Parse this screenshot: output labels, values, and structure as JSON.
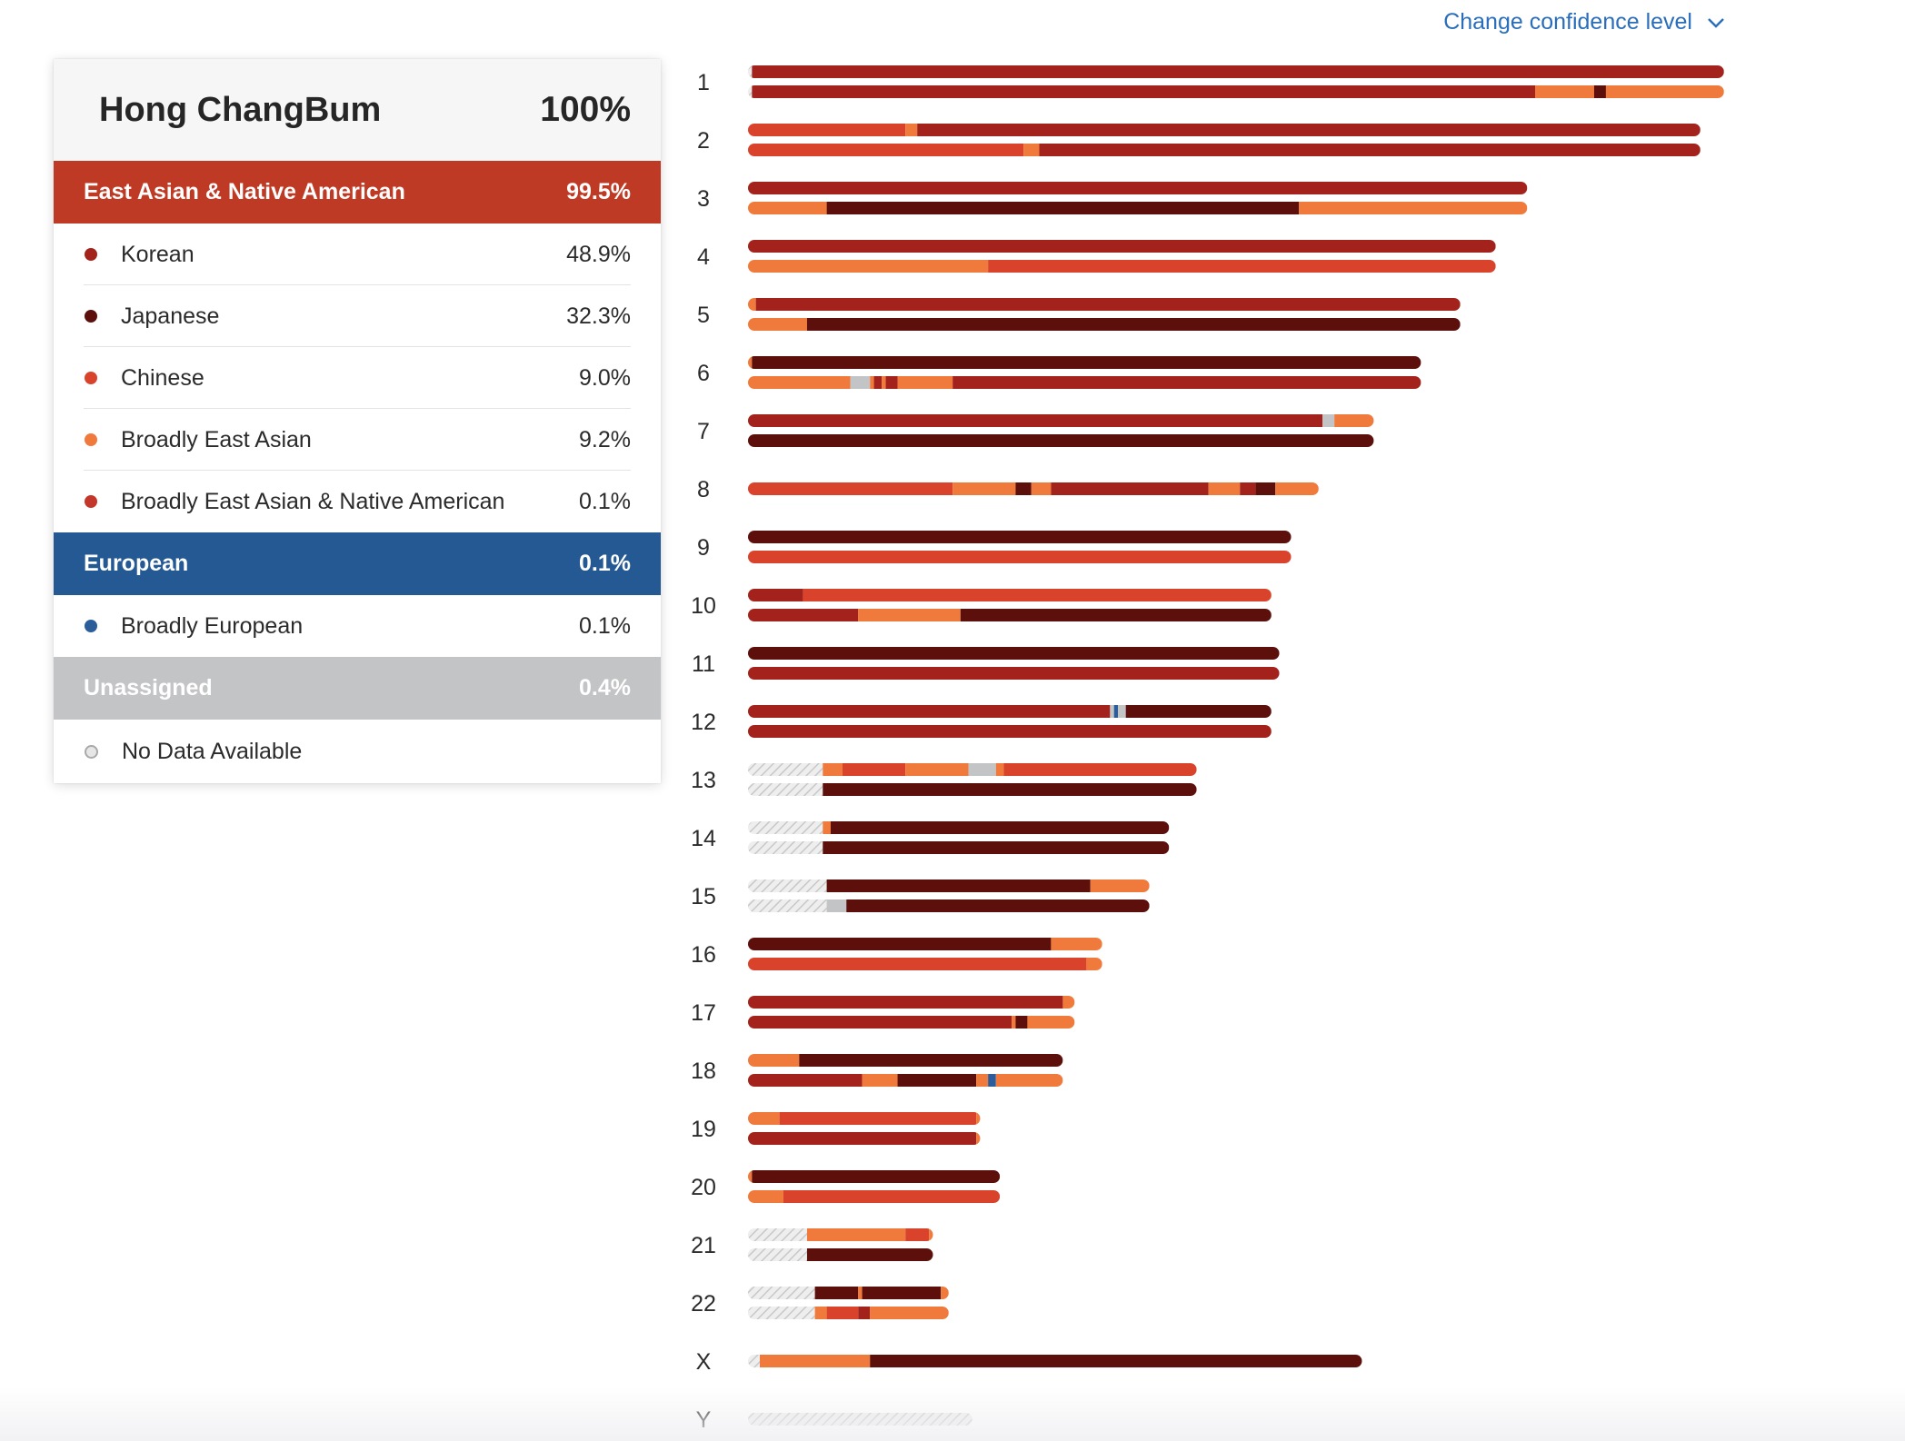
{
  "header": {
    "confidence_label": "Change confidence level"
  },
  "panel": {
    "name": "Hong ChangBum",
    "total": "100%",
    "categories": [
      {
        "label": "East Asian & Native American",
        "percent": "99.5%",
        "color": "#bf3a24",
        "items": [
          {
            "label": "Korean",
            "percent": "48.9%",
            "color": "#a3231c"
          },
          {
            "label": "Japanese",
            "percent": "32.3%",
            "color": "#5c0f0b"
          },
          {
            "label": "Chinese",
            "percent": "9.0%",
            "color": "#d9432b"
          },
          {
            "label": "Broadly East Asian",
            "percent": "9.2%",
            "color": "#ef7a3b"
          },
          {
            "label": "Broadly East Asian & Native American",
            "percent": "0.1%",
            "color": "#c4362a"
          }
        ]
      },
      {
        "label": "European",
        "percent": "0.1%",
        "color": "#245994",
        "items": [
          {
            "label": "Broadly European",
            "percent": "0.1%",
            "color": "#2a5d99"
          }
        ]
      },
      {
        "label": "Unassigned",
        "percent": "0.4%",
        "color": "#c3c4c6",
        "items": [
          {
            "label": "No Data Available",
            "percent": "",
            "color": "#e6e6e6"
          }
        ]
      }
    ]
  },
  "colors": {
    "K": "#a3231c",
    "J": "#5c0f0b",
    "C": "#d9432b",
    "B": "#ef7a3b",
    "E": "#2a5d99",
    "U": "#c3c4c6",
    "N": "hatch"
  },
  "chromosomes": [
    {
      "label": "1",
      "length": 248,
      "top": [
        [
          "N",
          0,
          1
        ],
        [
          "K",
          1,
          248
        ]
      ],
      "bottom": [
        [
          "N",
          0,
          1
        ],
        [
          "K",
          1,
          200
        ],
        [
          "B",
          200,
          215
        ],
        [
          "J",
          215,
          218
        ],
        [
          "B",
          218,
          248
        ]
      ]
    },
    {
      "label": "2",
      "length": 242,
      "top": [
        [
          "C",
          0,
          40
        ],
        [
          "B",
          40,
          43
        ],
        [
          "K",
          43,
          242
        ]
      ],
      "bottom": [
        [
          "C",
          0,
          70
        ],
        [
          "B",
          70,
          74
        ],
        [
          "K",
          74,
          242
        ]
      ]
    },
    {
      "label": "3",
      "length": 198,
      "top": [
        [
          "K",
          0,
          198
        ]
      ],
      "bottom": [
        [
          "B",
          0,
          20
        ],
        [
          "J",
          20,
          140
        ],
        [
          "B",
          140,
          198
        ]
      ]
    },
    {
      "label": "4",
      "length": 190,
      "top": [
        [
          "K",
          0,
          190
        ]
      ],
      "bottom": [
        [
          "B",
          0,
          61
        ],
        [
          "C",
          61,
          190
        ]
      ]
    },
    {
      "label": "5",
      "length": 181,
      "top": [
        [
          "B",
          0,
          2
        ],
        [
          "K",
          2,
          181
        ]
      ],
      "bottom": [
        [
          "B",
          0,
          15
        ],
        [
          "J",
          15,
          181
        ]
      ]
    },
    {
      "label": "6",
      "length": 171,
      "top": [
        [
          "B",
          0,
          1
        ],
        [
          "J",
          1,
          171
        ]
      ],
      "bottom": [
        [
          "B",
          0,
          26
        ],
        [
          "U",
          26,
          31
        ],
        [
          "B",
          31,
          32
        ],
        [
          "K",
          32,
          34
        ],
        [
          "B",
          34,
          35
        ],
        [
          "K",
          35,
          38
        ],
        [
          "B",
          38,
          52
        ],
        [
          "K",
          52,
          171
        ]
      ]
    },
    {
      "label": "7",
      "length": 159,
      "top": [
        [
          "K",
          0,
          146
        ],
        [
          "U",
          146,
          149
        ],
        [
          "B",
          149,
          159
        ]
      ],
      "bottom": [
        [
          "J",
          0,
          159
        ]
      ]
    },
    {
      "label": "8",
      "length": 145,
      "top": [
        [
          "C",
          0,
          52
        ],
        [
          "B",
          52,
          68
        ],
        [
          "J",
          68,
          72
        ],
        [
          "B",
          72,
          77
        ],
        [
          "K",
          77,
          117
        ],
        [
          "B",
          117,
          125
        ],
        [
          "K",
          125,
          129
        ],
        [
          "J",
          129,
          134
        ],
        [
          "B",
          134,
          145
        ]
      ]
    },
    {
      "label": "9",
      "length": 138,
      "top": [
        [
          "J",
          0,
          138
        ]
      ],
      "bottom": [
        [
          "C",
          0,
          138
        ]
      ]
    },
    {
      "label": "10",
      "length": 133,
      "top": [
        [
          "K",
          0,
          14
        ],
        [
          "C",
          14,
          133
        ]
      ],
      "bottom": [
        [
          "K",
          0,
          28
        ],
        [
          "B",
          28,
          54
        ],
        [
          "J",
          54,
          133
        ]
      ]
    },
    {
      "label": "11",
      "length": 135,
      "top": [
        [
          "J",
          0,
          135
        ]
      ],
      "bottom": [
        [
          "K",
          0,
          135
        ]
      ]
    },
    {
      "label": "12",
      "length": 133,
      "top": [
        [
          "K",
          0,
          92
        ],
        [
          "U",
          92,
          93
        ],
        [
          "E",
          93,
          94
        ],
        [
          "U",
          94,
          96
        ],
        [
          "J",
          96,
          133
        ]
      ],
      "bottom": [
        [
          "K",
          0,
          133
        ]
      ]
    },
    {
      "label": "13",
      "length": 114,
      "top": [
        [
          "N",
          0,
          19
        ],
        [
          "B",
          19,
          24
        ],
        [
          "C",
          24,
          40
        ],
        [
          "B",
          40,
          56
        ],
        [
          "U",
          56,
          63
        ],
        [
          "B",
          63,
          65
        ],
        [
          "C",
          65,
          114
        ]
      ],
      "bottom": [
        [
          "N",
          0,
          19
        ],
        [
          "J",
          19,
          114
        ]
      ]
    },
    {
      "label": "14",
      "length": 107,
      "top": [
        [
          "N",
          0,
          19
        ],
        [
          "B",
          19,
          21
        ],
        [
          "J",
          21,
          107
        ]
      ],
      "bottom": [
        [
          "N",
          0,
          19
        ],
        [
          "J",
          19,
          107
        ]
      ]
    },
    {
      "label": "15",
      "length": 102,
      "top": [
        [
          "N",
          0,
          20
        ],
        [
          "J",
          20,
          87
        ],
        [
          "B",
          87,
          102
        ]
      ],
      "bottom": [
        [
          "N",
          0,
          20
        ],
        [
          "U",
          20,
          25
        ],
        [
          "J",
          25,
          102
        ]
      ]
    },
    {
      "label": "16",
      "length": 90,
      "top": [
        [
          "J",
          0,
          77
        ],
        [
          "B",
          77,
          90
        ]
      ],
      "bottom": [
        [
          "C",
          0,
          86
        ],
        [
          "B",
          86,
          90
        ]
      ]
    },
    {
      "label": "17",
      "length": 83,
      "top": [
        [
          "K",
          0,
          80
        ],
        [
          "B",
          80,
          83
        ]
      ],
      "bottom": [
        [
          "K",
          0,
          67
        ],
        [
          "B",
          67,
          68
        ],
        [
          "J",
          68,
          71
        ],
        [
          "B",
          71,
          83
        ]
      ]
    },
    {
      "label": "18",
      "length": 80,
      "top": [
        [
          "B",
          0,
          13
        ],
        [
          "J",
          13,
          80
        ]
      ],
      "bottom": [
        [
          "K",
          0,
          29
        ],
        [
          "B",
          29,
          38
        ],
        [
          "J",
          38,
          58
        ],
        [
          "B",
          58,
          61
        ],
        [
          "E",
          61,
          63
        ],
        [
          "B",
          63,
          80
        ]
      ]
    },
    {
      "label": "19",
      "length": 59,
      "top": [
        [
          "B",
          0,
          8
        ],
        [
          "C",
          8,
          58
        ],
        [
          "B",
          58,
          59
        ]
      ],
      "bottom": [
        [
          "K",
          0,
          58
        ],
        [
          "B",
          58,
          59
        ]
      ]
    },
    {
      "label": "20",
      "length": 64,
      "top": [
        [
          "B",
          0,
          1
        ],
        [
          "J",
          1,
          64
        ]
      ],
      "bottom": [
        [
          "B",
          0,
          9
        ],
        [
          "C",
          9,
          64
        ]
      ]
    },
    {
      "label": "21",
      "length": 47,
      "top": [
        [
          "N",
          0,
          15
        ],
        [
          "B",
          15,
          40
        ],
        [
          "C",
          40,
          46
        ],
        [
          "B",
          46,
          47
        ]
      ],
      "bottom": [
        [
          "N",
          0,
          15
        ],
        [
          "J",
          15,
          47
        ]
      ]
    },
    {
      "label": "22",
      "length": 51,
      "top": [
        [
          "N",
          0,
          17
        ],
        [
          "J",
          17,
          28
        ],
        [
          "B",
          28,
          29
        ],
        [
          "J",
          29,
          49
        ],
        [
          "B",
          49,
          51
        ]
      ],
      "bottom": [
        [
          "N",
          0,
          17
        ],
        [
          "B",
          17,
          20
        ],
        [
          "C",
          20,
          28
        ],
        [
          "K",
          28,
          31
        ],
        [
          "B",
          31,
          51
        ]
      ]
    },
    {
      "label": "X",
      "length": 156,
      "top": [
        [
          "N",
          0,
          3
        ],
        [
          "B",
          3,
          31
        ],
        [
          "J",
          31,
          156
        ]
      ]
    },
    {
      "label": "Y",
      "length": 57,
      "top": [
        [
          "N",
          0,
          57
        ]
      ]
    }
  ]
}
